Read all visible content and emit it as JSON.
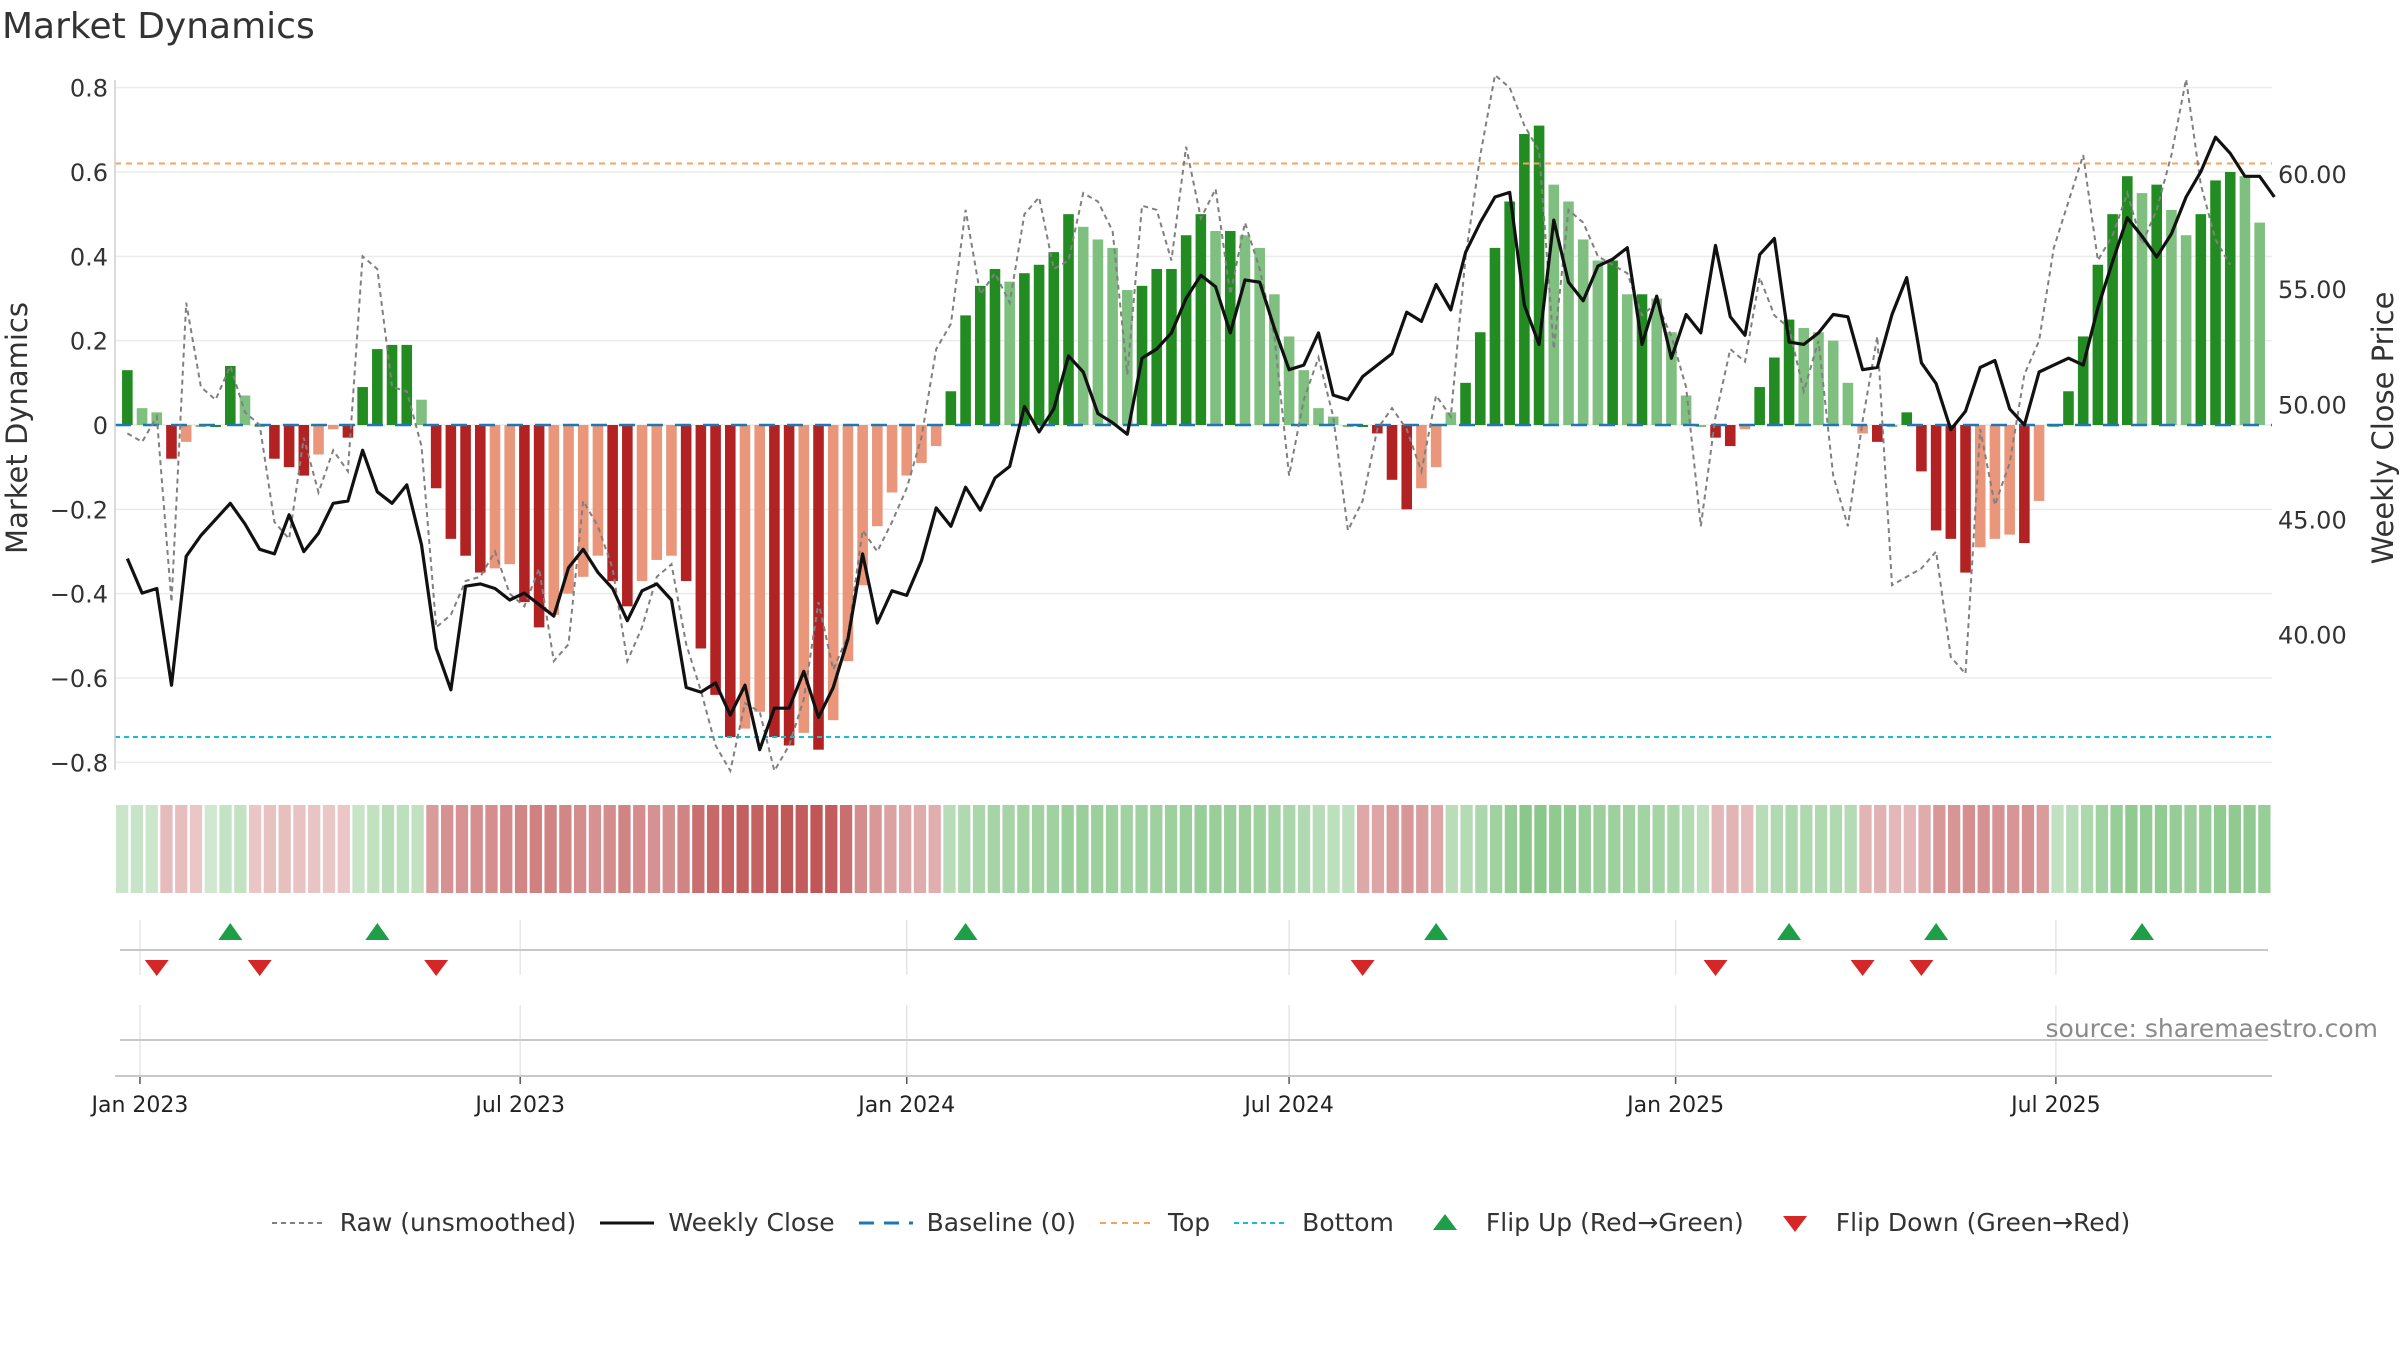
{
  "title": "Market Dynamics",
  "source": "source: sharemaestro.com",
  "colors": {
    "strong_green": "#228b22",
    "light_green": "#7fbf7f",
    "strong_red": "#b22222",
    "light_red": "#e9967a",
    "raw": "#808080",
    "close": "#111111",
    "baseline": "#1f77b4",
    "top": "#f4a460",
    "bottom": "#17becf",
    "flip_up": "#1f9e48",
    "flip_down": "#d62728"
  },
  "legend": [
    {
      "label": "Raw (unsmoothed)",
      "symbol": "raw"
    },
    {
      "label": "Weekly Close",
      "symbol": "close"
    },
    {
      "label": "Baseline (0)",
      "symbol": "baseline"
    },
    {
      "label": "Top",
      "symbol": "top"
    },
    {
      "label": "Bottom",
      "symbol": "bottom"
    },
    {
      "label": "Flip Up (Red→Green)",
      "symbol": "flip_up"
    },
    {
      "label": "Flip Down (Green→Red)",
      "symbol": "flip_down"
    }
  ],
  "chart_data": {
    "type": "bar",
    "start_date": "2022-12-26",
    "y_left_label": "Market Dynamics",
    "y_right_label": "Weekly Close Price",
    "y_left_ticks": [
      "−0.8",
      "−0.6",
      "−0.4",
      "−0.2",
      "0",
      "0.2",
      "0.4",
      "0.6",
      "0.8"
    ],
    "y_left_tick_values": [
      -0.8,
      -0.6,
      -0.4,
      -0.2,
      0,
      0.2,
      0.4,
      0.6,
      0.8
    ],
    "y_right_ticks": [
      "40.00",
      "45.00",
      "50.00",
      "55.00",
      "60.00"
    ],
    "y_right_tick_values": [
      40,
      45,
      50,
      55,
      60
    ],
    "y_left_range": [
      -0.83,
      0.83
    ],
    "y_right_range": [
      33.9,
      64.3
    ],
    "x_ticks": [
      "Jan 2023",
      "Jul 2023",
      "Jan 2024",
      "Jul 2024",
      "Jan 2025",
      "Jul 2025"
    ],
    "x_tick_dates": [
      "2023-01-01",
      "2023-07-01",
      "2024-01-01",
      "2024-07-01",
      "2025-01-01",
      "2025-07-01"
    ],
    "top_level": 0.62,
    "bottom_level": -0.74,
    "baseline": 0,
    "dynamics": [
      0.13,
      0.04,
      0.03,
      -0.08,
      -0.04,
      0.0,
      0.0,
      0.14,
      0.07,
      0.0,
      -0.08,
      -0.1,
      -0.12,
      -0.07,
      -0.01,
      -0.03,
      0.09,
      0.18,
      0.19,
      0.19,
      0.06,
      -0.15,
      -0.27,
      -0.31,
      -0.35,
      -0.34,
      -0.33,
      -0.42,
      -0.48,
      -0.45,
      -0.4,
      -0.36,
      -0.31,
      -0.37,
      -0.43,
      -0.37,
      -0.32,
      -0.31,
      -0.37,
      -0.53,
      -0.64,
      -0.74,
      -0.72,
      -0.68,
      -0.74,
      -0.76,
      -0.73,
      -0.77,
      -0.7,
      -0.56,
      -0.38,
      -0.24,
      -0.16,
      -0.12,
      -0.09,
      -0.05,
      0.08,
      0.26,
      0.33,
      0.37,
      0.34,
      0.36,
      0.38,
      0.41,
      0.5,
      0.47,
      0.44,
      0.42,
      0.32,
      0.33,
      0.37,
      0.37,
      0.45,
      0.5,
      0.46,
      0.46,
      0.45,
      0.42,
      0.31,
      0.21,
      0.13,
      0.04,
      0.02,
      0.0,
      0.0,
      -0.02,
      -0.13,
      -0.2,
      -0.15,
      -0.1,
      0.03,
      0.1,
      0.22,
      0.42,
      0.53,
      0.69,
      0.71,
      0.57,
      0.53,
      0.44,
      0.39,
      0.39,
      0.31,
      0.31,
      0.3,
      0.22,
      0.07,
      0.0,
      -0.03,
      -0.05,
      -0.01,
      0.09,
      0.16,
      0.25,
      0.23,
      0.22,
      0.2,
      0.1,
      -0.02,
      -0.04,
      0.0,
      0.03,
      -0.11,
      -0.25,
      -0.27,
      -0.35,
      -0.29,
      -0.27,
      -0.26,
      -0.28,
      -0.18,
      0.0,
      0.08,
      0.21,
      0.38,
      0.5,
      0.59,
      0.55,
      0.57,
      0.51,
      0.45,
      0.5,
      0.58,
      0.6,
      0.59,
      0.48
    ],
    "raw": [
      -0.02,
      -0.04,
      0.02,
      -0.42,
      0.29,
      0.09,
      0.06,
      0.14,
      0.03,
      0.0,
      -0.23,
      -0.27,
      -0.03,
      -0.16,
      -0.06,
      -0.11,
      0.4,
      0.37,
      0.09,
      0.08,
      -0.05,
      -0.48,
      -0.45,
      -0.37,
      -0.36,
      -0.3,
      -0.4,
      -0.43,
      -0.34,
      -0.56,
      -0.52,
      -0.18,
      -0.24,
      -0.34,
      -0.56,
      -0.48,
      -0.36,
      -0.33,
      -0.52,
      -0.63,
      -0.76,
      -0.82,
      -0.66,
      -0.68,
      -0.82,
      -0.76,
      -0.65,
      -0.42,
      -0.58,
      -0.5,
      -0.25,
      -0.3,
      -0.23,
      -0.15,
      -0.03,
      0.18,
      0.24,
      0.51,
      0.31,
      0.36,
      0.29,
      0.5,
      0.54,
      0.37,
      0.39,
      0.55,
      0.53,
      0.46,
      0.12,
      0.52,
      0.51,
      0.39,
      0.66,
      0.49,
      0.56,
      0.31,
      0.48,
      0.37,
      0.21,
      -0.12,
      0.06,
      0.16,
      0.02,
      -0.25,
      -0.18,
      -0.01,
      0.04,
      -0.01,
      -0.11,
      0.07,
      0.02,
      0.4,
      0.64,
      0.83,
      0.8,
      0.71,
      0.65,
      0.18,
      0.51,
      0.48,
      0.4,
      0.38,
      0.36,
      0.26,
      0.29,
      0.21,
      0.09,
      -0.24,
      0.02,
      0.18,
      0.15,
      0.35,
      0.26,
      0.23,
      0.08,
      0.2,
      -0.12,
      -0.24,
      0.01,
      0.21,
      -0.38,
      -0.36,
      -0.34,
      -0.3,
      -0.55,
      -0.59,
      -0.01,
      -0.19,
      -0.09,
      0.12,
      0.2,
      0.42,
      0.53,
      0.64,
      0.39,
      0.45,
      0.55,
      0.43,
      0.51,
      0.64,
      0.82,
      0.57,
      0.44,
      0.38
    ],
    "close": [
      43.3,
      41.8,
      42.0,
      37.8,
      43.4,
      44.3,
      45.0,
      45.7,
      44.8,
      43.7,
      43.5,
      45.2,
      43.6,
      44.4,
      45.7,
      45.8,
      48.0,
      46.2,
      45.7,
      46.5,
      43.9,
      39.4,
      37.6,
      42.1,
      42.2,
      42.0,
      41.5,
      41.8,
      41.3,
      40.8,
      42.9,
      43.7,
      42.7,
      42.0,
      40.6,
      41.9,
      42.2,
      41.5,
      37.7,
      37.5,
      37.9,
      36.5,
      37.8,
      35.0,
      36.8,
      36.8,
      38.4,
      36.4,
      37.7,
      39.8,
      43.5,
      40.5,
      41.9,
      41.7,
      43.2,
      45.5,
      44.7,
      46.4,
      45.4,
      46.8,
      47.3,
      49.9,
      48.8,
      49.8,
      52.1,
      51.4,
      49.6,
      49.2,
      48.7,
      52.0,
      52.4,
      53.1,
      54.6,
      55.6,
      55.1,
      53.1,
      55.4,
      55.3,
      53.3,
      51.5,
      51.7,
      53.1,
      50.4,
      50.2,
      51.2,
      51.7,
      52.2,
      54.0,
      53.6,
      55.2,
      54.1,
      56.6,
      57.9,
      59.0,
      59.2,
      54.3,
      52.6,
      58.0,
      55.3,
      54.5,
      56.0,
      56.3,
      56.8,
      52.6,
      54.7,
      52.0,
      53.9,
      53.1,
      56.9,
      53.8,
      53.0,
      56.5,
      57.2,
      52.7,
      52.6,
      53.1,
      53.9,
      53.8,
      51.5,
      51.6,
      53.9,
      55.5,
      51.8,
      50.9,
      48.9,
      49.7,
      51.6,
      51.9,
      49.8,
      49.1,
      51.4,
      51.7,
      52.0,
      51.7,
      54.2,
      56.2,
      58.1,
      57.3,
      56.4,
      57.4,
      59.0,
      60.1,
      61.6,
      60.9,
      59.9,
      59.9,
      59.0
    ],
    "state_strip": [
      0.1,
      0.12,
      0.09,
      -0.1,
      -0.08,
      -0.03,
      0.06,
      0.15,
      0.17,
      -0.03,
      -0.06,
      -0.07,
      -0.05,
      -0.04,
      -0.02,
      -0.03,
      0.13,
      0.18,
      0.24,
      0.22,
      0.18,
      -0.3,
      -0.36,
      -0.35,
      -0.38,
      -0.39,
      -0.41,
      -0.44,
      -0.47,
      -0.46,
      -0.43,
      -0.4,
      -0.36,
      -0.4,
      -0.45,
      -0.4,
      -0.36,
      -0.38,
      -0.45,
      -0.58,
      -0.62,
      -0.66,
      -0.68,
      -0.67,
      -0.71,
      -0.73,
      -0.7,
      -0.74,
      -0.7,
      -0.58,
      -0.4,
      -0.32,
      -0.26,
      -0.22,
      -0.2,
      -0.18,
      0.26,
      0.32,
      0.36,
      0.4,
      0.4,
      0.42,
      0.43,
      0.45,
      0.5,
      0.5,
      0.48,
      0.47,
      0.44,
      0.45,
      0.46,
      0.47,
      0.5,
      0.52,
      0.51,
      0.5,
      0.48,
      0.46,
      0.42,
      0.36,
      0.3,
      0.26,
      0.22,
      0.2,
      -0.22,
      -0.24,
      -0.3,
      -0.33,
      -0.28,
      -0.24,
      0.24,
      0.28,
      0.35,
      0.45,
      0.54,
      0.62,
      0.63,
      0.58,
      0.56,
      0.52,
      0.48,
      0.47,
      0.43,
      0.42,
      0.41,
      0.37,
      0.28,
      0.2,
      -0.12,
      -0.14,
      -0.1,
      0.26,
      0.3,
      0.34,
      0.33,
      0.32,
      0.31,
      0.28,
      -0.14,
      -0.16,
      -0.12,
      -0.12,
      -0.2,
      -0.32,
      -0.34,
      -0.38,
      -0.36,
      -0.35,
      -0.34,
      -0.36,
      -0.3,
      0.18,
      0.24,
      0.34,
      0.44,
      0.52,
      0.58,
      0.55,
      0.56,
      0.53,
      0.5,
      0.52,
      0.56,
      0.58,
      0.57,
      0.52
    ],
    "flip_up_weeks": [
      7,
      17,
      57,
      89,
      113,
      123,
      137
    ],
    "flip_down_weeks": [
      2,
      9,
      21,
      84,
      108,
      118,
      122
    ]
  }
}
